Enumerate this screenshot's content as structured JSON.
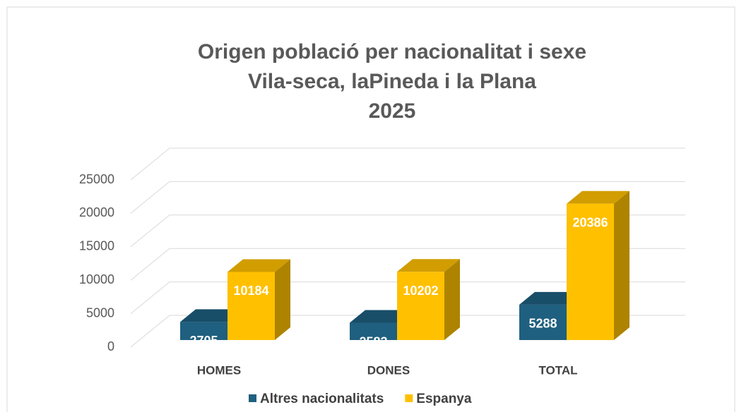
{
  "chart_data": {
    "type": "bar3d",
    "title": [
      "Origen població per nacionalitat i sexe",
      "Vila-seca, laPineda i la Plana",
      "2025"
    ],
    "categories": [
      "HOMES",
      "DONES",
      "TOTAL"
    ],
    "series": [
      {
        "name": "Altres nacionalitats",
        "color": "#1f5f7f",
        "values": [
          2705,
          2583,
          5288
        ]
      },
      {
        "name": "Espanya",
        "color": "#ffc000",
        "values": [
          10184,
          10202,
          20386
        ]
      }
    ],
    "ylim": [
      0,
      25000
    ],
    "yticks": [
      0,
      5000,
      10000,
      15000,
      20000,
      25000
    ],
    "grid": true,
    "legend": "bottom"
  }
}
